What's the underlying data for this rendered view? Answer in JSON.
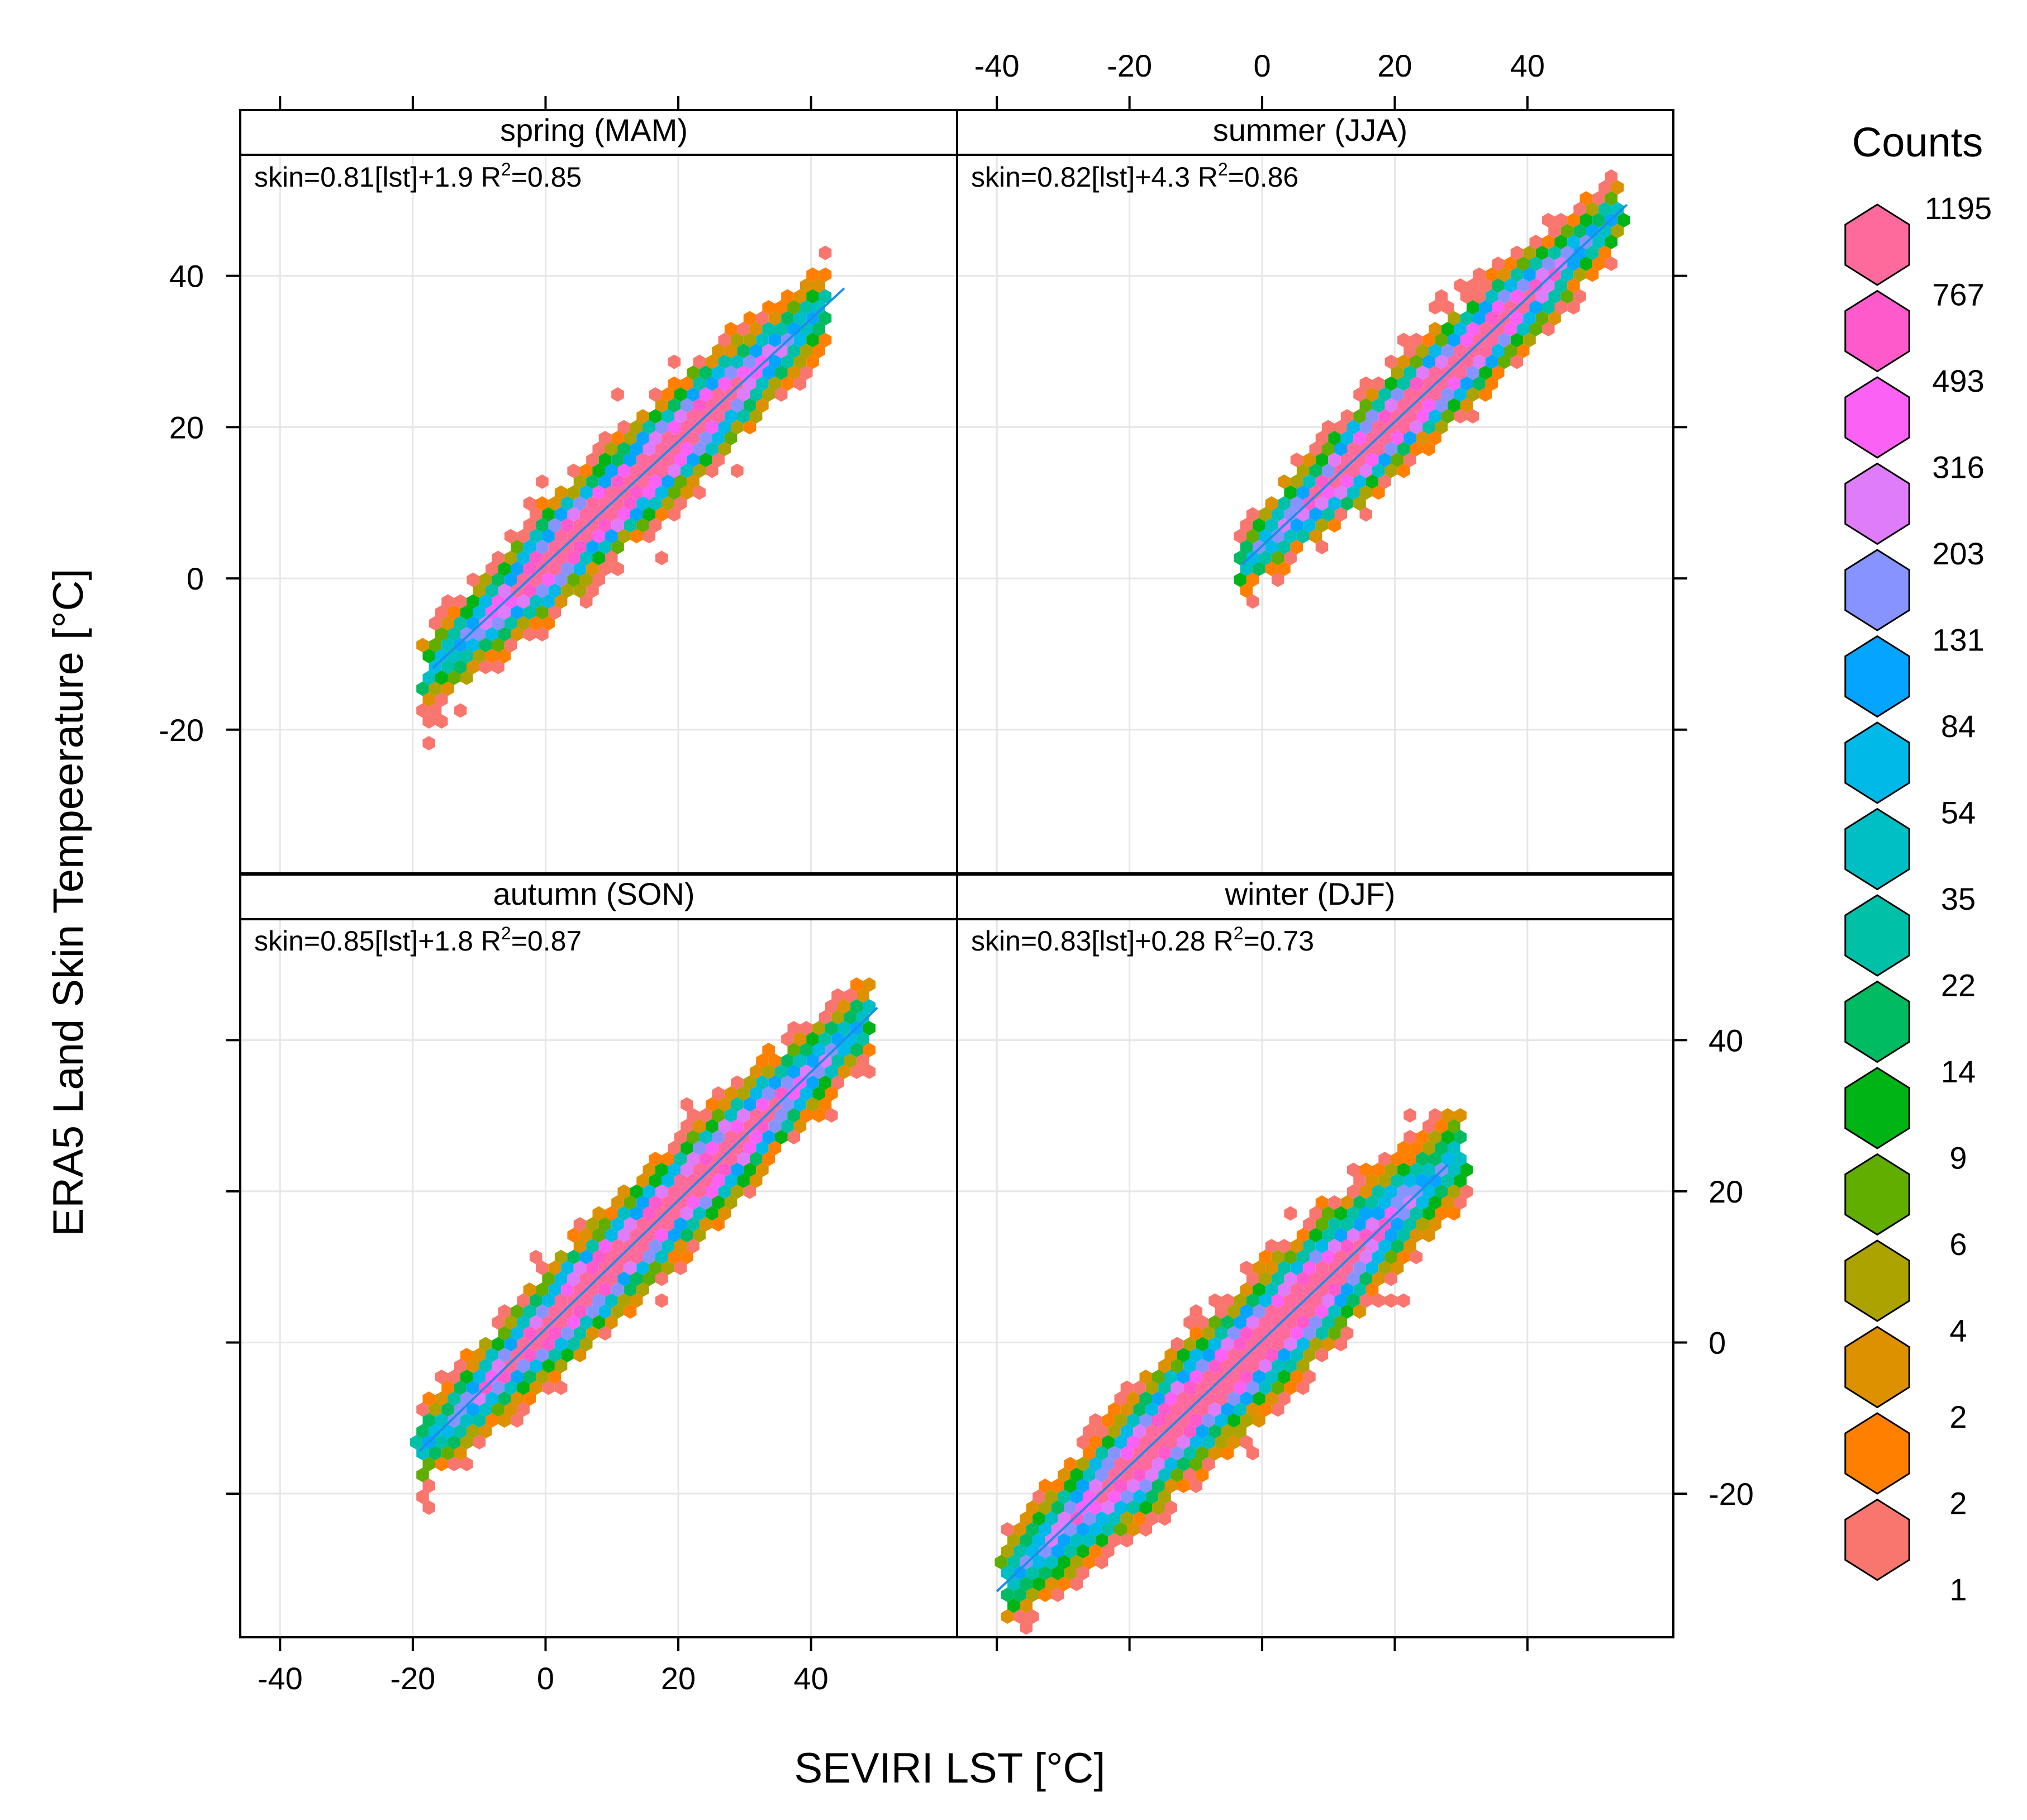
{
  "chart_data": {
    "type": "hexbin",
    "xlabel": "SEVIRI LST [°C]",
    "ylabel": "ERA5 Land Skin Tempeerature [°C]",
    "xlim": [
      -46,
      62
    ],
    "ylim": [
      -39,
      56
    ],
    "x_ticks": [
      -40,
      -20,
      0,
      20,
      40
    ],
    "y_ticks": [
      -20,
      0,
      20,
      40
    ],
    "x_tick_labels": [
      "-40",
      "-20",
      "0",
      "20",
      "40"
    ],
    "y_tick_labels": [
      "-20",
      "0",
      "20",
      "40"
    ],
    "grid": true,
    "fit_line_color": "#1e8ce6",
    "panels": [
      {
        "name": "spring (MAM)",
        "equation": "skin=0.81[lst]+1.9 R",
        "r2": "=0.85",
        "sup": "2",
        "slope": 0.81,
        "intercept": 1.9,
        "fit_x": [
          -17,
          45
        ],
        "cloud": {
          "x0": -15,
          "x1": 40,
          "width_core": 5.5,
          "width_edge": 9
        }
      },
      {
        "name": "summer (JJA)",
        "equation": "skin=0.82[lst]+4.3 R",
        "r2": "=0.86",
        "sup": "2",
        "slope": 0.82,
        "intercept": 4.3,
        "fit_x": [
          -3,
          55
        ],
        "cloud": {
          "x0": -1,
          "x1": 51,
          "width_core": 5,
          "width_edge": 8
        }
      },
      {
        "name": "autumn (SON)",
        "equation": "skin=0.85[lst]+1.8 R",
        "r2": "=0.87",
        "sup": "2",
        "slope": 0.85,
        "intercept": 1.8,
        "fit_x": [
          -19,
          50
        ],
        "cloud": {
          "x0": -16,
          "x1": 46,
          "width_core": 5.5,
          "width_edge": 9
        }
      },
      {
        "name": "winter (DJF)",
        "equation": "skin=0.83[lst]+0.28 R",
        "r2": "=0.73",
        "sup": "2",
        "slope": 0.83,
        "intercept": 0.28,
        "fit_x": [
          -40,
          28
        ],
        "cloud": {
          "x0": -36,
          "x1": 27,
          "width_core": 7,
          "width_edge": 11
        }
      }
    ],
    "legend": {
      "title": "Counts",
      "levels": [
        {
          "label": "1195",
          "color": "#ff6a9c"
        },
        {
          "label": "767",
          "color": "#ff5acb"
        },
        {
          "label": "493",
          "color": "#fb61f5"
        },
        {
          "label": "316",
          "color": "#df7cf9"
        },
        {
          "label": "203",
          "color": "#8794ff"
        },
        {
          "label": "131",
          "color": "#05a4ff"
        },
        {
          "label": "84",
          "color": "#00b9e8"
        },
        {
          "label": "54",
          "color": "#00bfc4"
        },
        {
          "label": "35",
          "color": "#00c0a7"
        },
        {
          "label": "22",
          "color": "#00bb62"
        },
        {
          "label": "14",
          "color": "#00b415"
        },
        {
          "label": "9",
          "color": "#61ad00"
        },
        {
          "label": "6",
          "color": "#aca300"
        },
        {
          "label": "4",
          "color": "#dd9000"
        },
        {
          "label": "2",
          "color": "#ff8000"
        },
        {
          "label": "2",
          "color": "#f8766d"
        },
        {
          "label": "1",
          "color": "#f8766d"
        }
      ]
    }
  }
}
